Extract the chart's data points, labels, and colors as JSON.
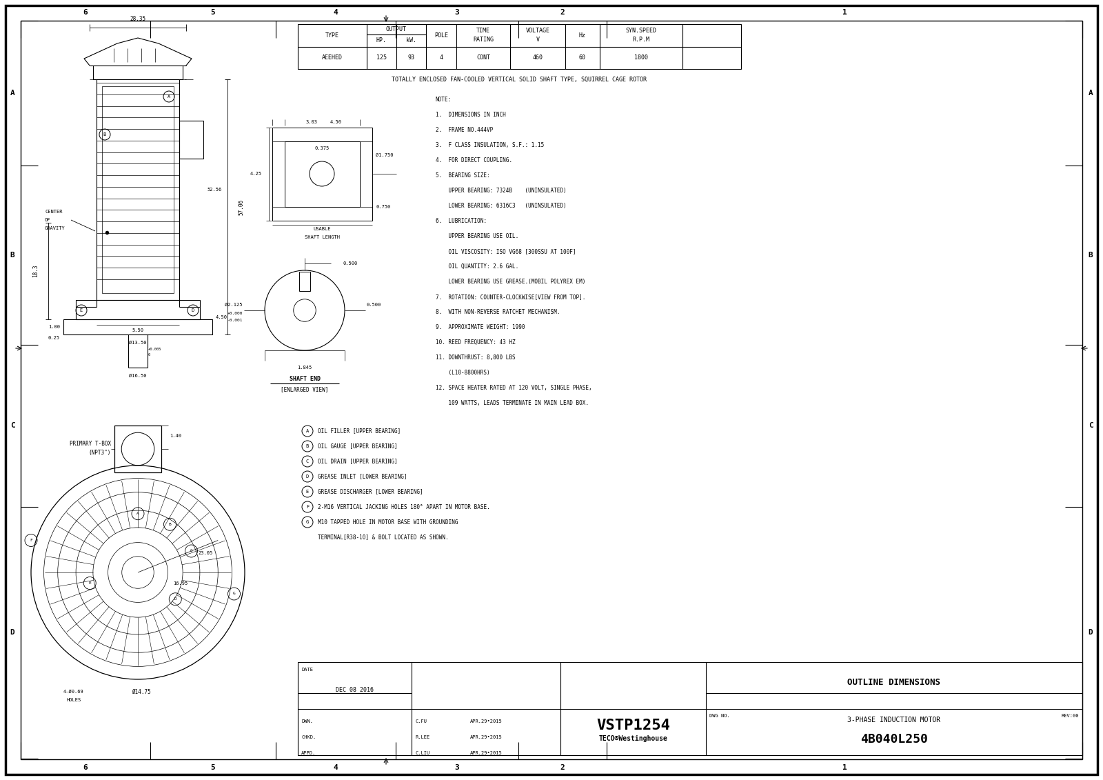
{
  "bg_color": "#ffffff",
  "line_color": "#000000",
  "font_mono": "monospace",
  "page_width": 16.0,
  "page_height": 11.31,
  "dpi": 100,
  "col_labels": [
    "6",
    "5",
    "4",
    "3",
    "2",
    "1"
  ],
  "row_labels": [
    "A",
    "B",
    "C",
    "D"
  ],
  "spec_text": "TOTALLY ENCLOSED FAN-COOLED VERTICAL SOLID SHAFT TYPE, SQUIRREL CAGE ROTOR",
  "notes": [
    "NOTE:",
    "1.  DIMENSIONS IN INCH",
    "2.  FRAME NO.444VP",
    "3.  F CLASS INSULATION, S.F.: 1.15",
    "4.  FOR DIRECT COUPLING.",
    "5.  BEARING SIZE:",
    "    UPPER BEARING: 7324B    (UNINSULATED)",
    "    LOWER BEARING: 6316C3   (UNINSULATED)",
    "6.  LUBRICATION:",
    "    UPPER BEARING USE OIL.",
    "    OIL VISCOSITY: ISO VG68 [300SSU AT 100F]",
    "    OIL QUANTITY: 2.6 GAL.",
    "    LOWER BEARING USE GREASE.(MOBIL POLYREX EM)",
    "7.  ROTATION: COUNTER-CLOCKWISE[VIEW FROM TOP].",
    "8.  WITH NON-REVERSE RATCHET MECHANISM.",
    "9.  APPROXIMATE WEIGHT: 1990",
    "10. REED FREQUENCY: 43 HZ",
    "11. DOWNTHRUST: 8,800 LBS",
    "    (L10-8800HRS)",
    "12. SPACE HEATER RATED AT 120 VOLT, SINGLE PHASE,",
    "    109 WATTS, LEADS TERMINATE IN MAIN LEAD BOX."
  ],
  "legend_items": [
    [
      "A",
      "OIL FILLER [UPPER BEARING]"
    ],
    [
      "B",
      "OIL GAUGE [UPPER BEARING]"
    ],
    [
      "C",
      "OIL DRAIN [UPPER BEARING]"
    ],
    [
      "D",
      "GREASE INLET [LOWER BEARING]"
    ],
    [
      "E",
      "GREASE DISCHARGER [LOWER BEARING]"
    ],
    [
      "F",
      "2-M16 VERTICAL JACKING HOLES 180° APART IN MOTOR BASE."
    ],
    [
      "G",
      "M10 TAPPED HOLE IN MOTOR BASE WITH GROUNDING"
    ],
    [
      "",
      "TERMINAL[R38-10] & BOLT LOCATED AS SHOWN."
    ]
  ],
  "title_block": {
    "date": "DEC 08 2016",
    "model": "VSTP1254",
    "description1": "OUTLINE DIMENSIONS",
    "description2": "3-PHASE INDUCTION MOTOR",
    "dwn": "C.FU",
    "dwn_date": "APR.29•2015",
    "chkd": "R.LEE",
    "chkd_date": "APR.29•2015",
    "appd": "C.LIU",
    "appd_date": "APR.29•2015",
    "dwg_no": "4B040L250",
    "rev": "REV:00"
  }
}
